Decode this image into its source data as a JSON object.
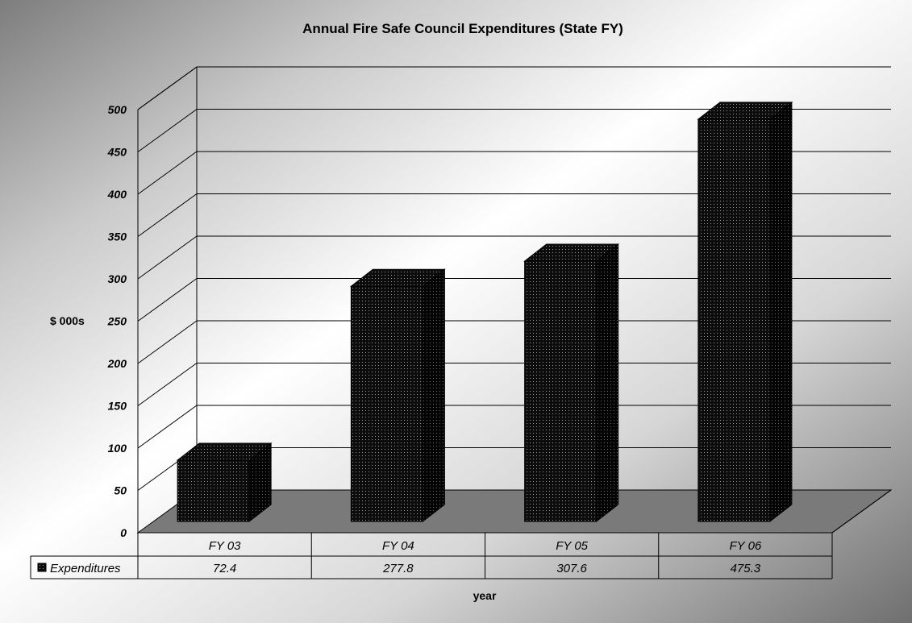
{
  "chart_data": {
    "type": "bar",
    "title": "Annual Fire Safe Council Expenditures (State FY)",
    "xlabel": "year",
    "ylabel": "$ 000s",
    "categories": [
      "FY 03",
      "FY 04",
      "FY 05",
      "FY 06"
    ],
    "series": [
      {
        "name": "Expenditures",
        "values": [
          72.4,
          277.8,
          307.6,
          475.3
        ],
        "value_labels": [
          "72.4",
          "277.8",
          "307.6",
          "475.3"
        ]
      }
    ],
    "ylim": [
      0,
      500
    ],
    "yticks": [
      "0",
      "50",
      "100",
      "150",
      "200",
      "250",
      "300",
      "350",
      "400",
      "450",
      "500"
    ],
    "grid": true,
    "legend": "data-table-left",
    "colors": {
      "bar": "#0d0d0d",
      "floor": "#7a7a7a",
      "gridline": "#000000"
    }
  }
}
